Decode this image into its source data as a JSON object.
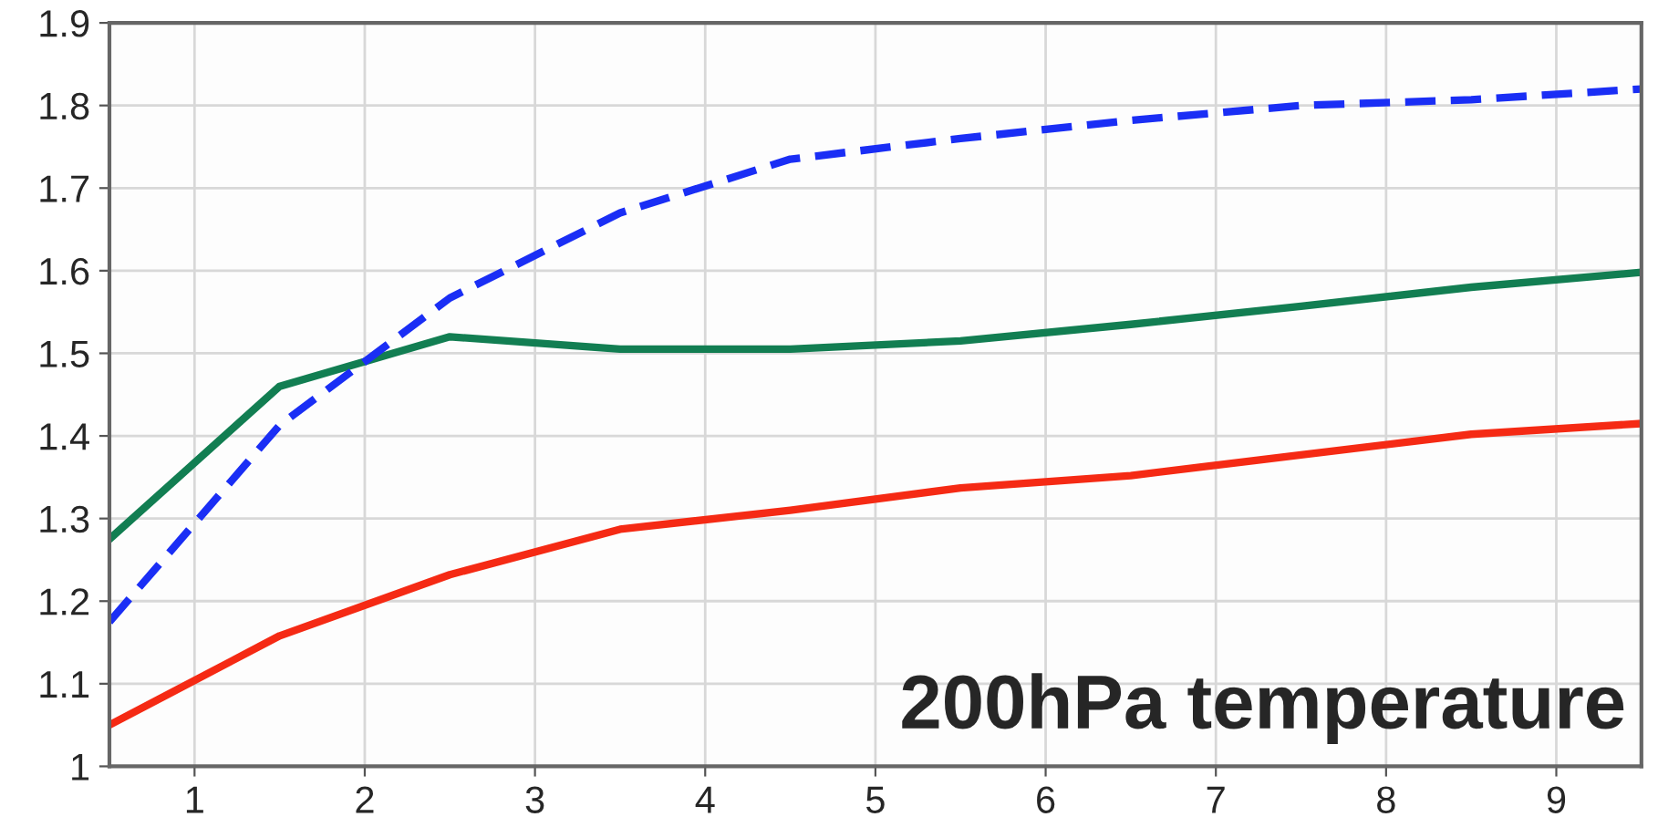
{
  "chart_data": {
    "type": "line",
    "x": [
      0.5,
      1.5,
      2.5,
      3.5,
      4.5,
      5.5,
      6.5,
      7.5,
      8.5,
      9.5
    ],
    "series": [
      {
        "color": "#127e52",
        "values": [
          1.275,
          1.46,
          1.52,
          1.505,
          1.505,
          1.515,
          1.535,
          1.557,
          1.58,
          1.598
        ]
      },
      {
        "color": "#1a2ef5",
        "line_style": "dashed",
        "values": [
          1.175,
          1.413,
          1.567,
          1.67,
          1.735,
          1.76,
          1.782,
          1.8,
          1.807,
          1.82
        ]
      },
      {
        "color": "#f52a14",
        "values": [
          1.05,
          1.158,
          1.232,
          1.287,
          1.31,
          1.337,
          1.352,
          1.377,
          1.402,
          1.415
        ]
      }
    ],
    "xlim": [
      0.5,
      9.5
    ],
    "xticks": [
      1,
      2,
      3,
      4,
      5,
      6,
      7,
      8,
      9
    ],
    "ylim": [
      1,
      1.9
    ],
    "yticks": [
      1,
      1.1,
      1.2,
      1.3,
      1.4,
      1.5,
      1.6,
      1.7,
      1.8,
      1.9
    ],
    "grid": true,
    "annotations": [
      "200hPa temperature"
    ]
  }
}
